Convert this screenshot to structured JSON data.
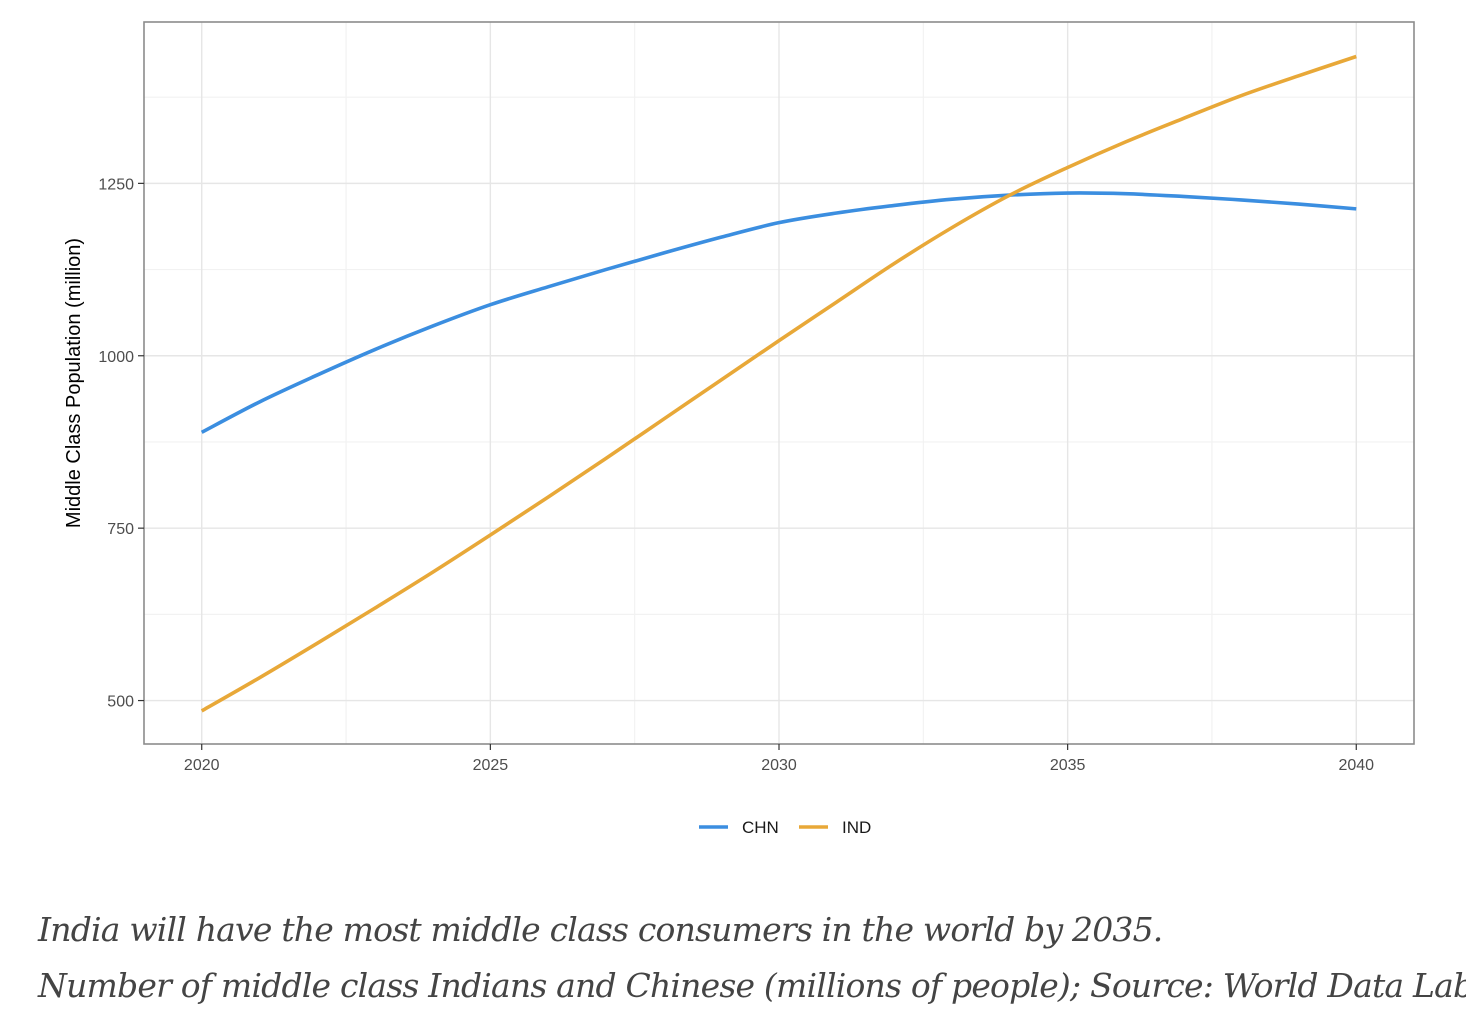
{
  "chart_data": {
    "type": "line",
    "xlabel": "",
    "ylabel": "Middle Class Population (million)",
    "x_ticks": [
      2020,
      2025,
      2030,
      2035,
      2040
    ],
    "y_ticks": [
      500,
      750,
      1000,
      1250
    ],
    "xlim": [
      2019,
      2041
    ],
    "ylim": [
      437,
      1484
    ],
    "grid": true,
    "legend_position": "bottom",
    "series": [
      {
        "name": "CHN",
        "color": "#3b8ee0",
        "x": [
          2020,
          2021,
          2022,
          2023,
          2024,
          2025,
          2026,
          2027,
          2028,
          2029,
          2030,
          2031,
          2032,
          2033,
          2034,
          2035,
          2036,
          2037,
          2038,
          2039,
          2040
        ],
        "y": [
          889,
          933,
          972,
          1009,
          1043,
          1074,
          1100,
          1125,
          1149,
          1172,
          1193,
          1207,
          1218,
          1227,
          1233,
          1236,
          1235,
          1231,
          1226,
          1220,
          1213
        ]
      },
      {
        "name": "IND",
        "color": "#e8a838",
        "x": [
          2020,
          2021,
          2022,
          2023,
          2024,
          2025,
          2026,
          2027,
          2028,
          2029,
          2030,
          2031,
          2032,
          2033,
          2034,
          2035,
          2036,
          2037,
          2038,
          2039,
          2040
        ],
        "y": [
          485,
          533,
          583,
          634,
          686,
          740,
          795,
          851,
          908,
          965,
          1022,
          1078,
          1134,
          1186,
          1233,
          1273,
          1310,
          1344,
          1377,
          1406,
          1434
        ]
      }
    ]
  },
  "caption": {
    "line1": "India will have the most middle class consumers in the world by 2035.",
    "line2": "Number of middle class Indians and Chinese (millions of people); Source: World Data Lab"
  }
}
